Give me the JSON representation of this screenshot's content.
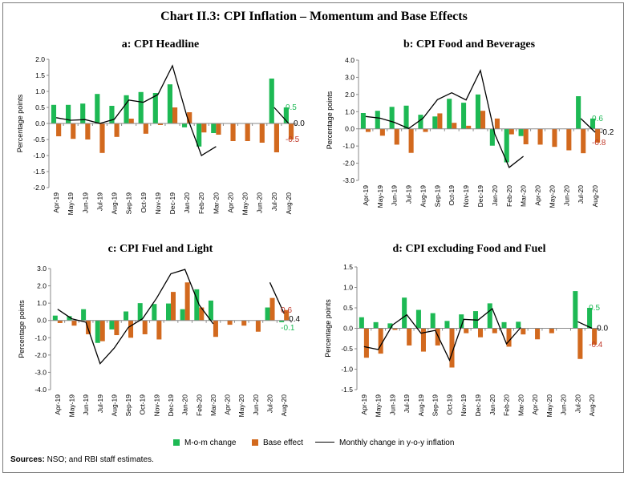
{
  "figure": {
    "title": "Chart II.3: CPI Inflation – Momentum and Base Effects",
    "legend": {
      "mom": "M-o-m change",
      "base": "Base effect",
      "line": "Monthly change in y-o-y inflation"
    },
    "sources_label": "Sources:",
    "sources_text": "NSO; and RBI staff estimates."
  },
  "colors": {
    "mom": "#1db954",
    "base": "#d2691e",
    "line": "#000000",
    "axis": "#8a8a8a",
    "red_label": "#c0392b",
    "green_label": "#1db954"
  },
  "chart_data": [
    {
      "type": "bar",
      "title": "a: CPI Headline",
      "ylabel": "Percentage points",
      "categories": [
        "Apr-19",
        "May-19",
        "Jun-19",
        "Jul-19",
        "Aug-19",
        "Sep-19",
        "Oct-19",
        "Nov-19",
        "Dec-19",
        "Jan-20",
        "Feb-20",
        "Mar-20",
        "Apr-20",
        "May-20",
        "Jun-20",
        "Jul-20",
        "Aug-20"
      ],
      "ylim": [
        -2.0,
        2.0
      ],
      "yticks": [
        "2.0",
        "1.5",
        "1.0",
        "0.5",
        "0.0",
        "-0.5",
        "-1.0",
        "-1.5",
        "-2.0"
      ],
      "series": [
        {
          "name": "M-o-m change",
          "values": [
            0.58,
            0.58,
            0.62,
            0.92,
            0.55,
            0.88,
            0.98,
            0.95,
            1.22,
            -0.12,
            -0.72,
            -0.3,
            null,
            null,
            null,
            1.4,
            0.5
          ]
        },
        {
          "name": "Base effect",
          "values": [
            -0.4,
            -0.48,
            -0.5,
            -0.92,
            -0.42,
            0.15,
            -0.32,
            -0.05,
            0.5,
            0.35,
            -0.28,
            -0.35,
            -0.55,
            -0.55,
            -0.6,
            -0.9,
            -0.5
          ]
        },
        {
          "name": "Monthly change in y-o-y inflation",
          "values": [
            0.18,
            0.1,
            0.12,
            0.0,
            0.13,
            0.73,
            0.66,
            0.9,
            1.8,
            0.22,
            -1.0,
            -0.72,
            null,
            null,
            null,
            0.5,
            0.0
          ]
        }
      ],
      "labels": [
        {
          "text": "0.5",
          "series": "mom",
          "index": 16,
          "value": 0.5
        },
        {
          "text": "0.0",
          "series": "line",
          "index": 16,
          "value": 0.0
        },
        {
          "text": "-0.5",
          "series": "base",
          "index": 16,
          "value": -0.5
        }
      ]
    },
    {
      "type": "bar",
      "title": "b: CPI Food and Beverages",
      "ylabel": "Percentage points",
      "categories": [
        "Apr-19",
        "May-19",
        "Jun-19",
        "Jul-19",
        "Aug-19",
        "Sep-19",
        "Oct-19",
        "Nov-19",
        "Dec-19",
        "Jan-20",
        "Feb-20",
        "Mar-20",
        "Apr-20",
        "May-20",
        "Jun-20",
        "Jul-20",
        "Aug-20"
      ],
      "ylim": [
        -3.0,
        4.0
      ],
      "yticks": [
        "4.0",
        "3.0",
        "2.0",
        "1.0",
        "0.0",
        "-1.0",
        "-2.0",
        "-3.0"
      ],
      "series": [
        {
          "name": "M-o-m change",
          "values": [
            0.92,
            1.05,
            1.28,
            1.35,
            0.82,
            0.72,
            1.75,
            1.52,
            2.0,
            -0.98,
            -1.95,
            -0.42,
            null,
            null,
            null,
            1.9,
            0.6
          ]
        },
        {
          "name": "Base effect",
          "values": [
            -0.18,
            -0.4,
            -0.92,
            -1.4,
            -0.18,
            0.9,
            0.35,
            0.18,
            1.05,
            0.6,
            -0.32,
            -0.9,
            -0.92,
            -1.05,
            -1.25,
            -1.42,
            -0.8
          ]
        },
        {
          "name": "Monthly change in y-o-y inflation",
          "values": [
            0.72,
            0.62,
            0.38,
            0.02,
            0.62,
            1.7,
            2.1,
            1.68,
            3.4,
            -0.3,
            -2.25,
            -1.6,
            null,
            null,
            null,
            0.6,
            -0.2
          ]
        }
      ],
      "labels": [
        {
          "text": "0.6",
          "series": "mom",
          "index": 16,
          "value": 0.6
        },
        {
          "text": "-0.2",
          "series": "line",
          "index": 16,
          "value": -0.2
        },
        {
          "text": "-0.8",
          "series": "base",
          "index": 16,
          "value": -0.8
        }
      ]
    },
    {
      "type": "bar",
      "title": "c: CPI Fuel and Light",
      "ylabel": "Percentage points",
      "categories": [
        "Apr-19",
        "May-19",
        "Jun-19",
        "Jul-19",
        "Aug-19",
        "Sep-19",
        "Oct-19",
        "Nov-19",
        "Dec-19",
        "Jan-20",
        "Feb-20",
        "Mar-20",
        "Apr-20",
        "May-20",
        "Jun-20",
        "Jul-20",
        "Aug-20"
      ],
      "ylim": [
        -4.0,
        3.0
      ],
      "yticks": [
        "3.0",
        "2.0",
        "1.0",
        "0.0",
        "-1.0",
        "-2.0",
        "-3.0",
        "-4.0"
      ],
      "series": [
        {
          "name": "M-o-m change",
          "values": [
            0.28,
            0.25,
            0.65,
            -1.3,
            -0.52,
            0.52,
            1.0,
            0.95,
            0.98,
            0.65,
            1.8,
            1.15,
            null,
            null,
            null,
            0.75,
            -0.1
          ]
        },
        {
          "name": "Base effect",
          "values": [
            -0.15,
            -0.3,
            -0.8,
            -1.2,
            -0.85,
            -1.0,
            -0.8,
            -1.1,
            1.65,
            2.2,
            0.75,
            -0.95,
            -0.25,
            -0.3,
            -0.65,
            1.3,
            0.6
          ]
        },
        {
          "name": "Monthly change in y-o-y inflation",
          "values": [
            0.65,
            0.1,
            -0.1,
            -2.5,
            -1.6,
            -0.4,
            0.1,
            1.3,
            2.7,
            2.95,
            0.9,
            -0.2,
            null,
            null,
            null,
            2.2,
            0.4
          ]
        }
      ],
      "labels": [
        {
          "text": "0.6",
          "series": "base",
          "index": 16,
          "value": 0.6
        },
        {
          "text": "0.4",
          "series": "line",
          "index": 16,
          "value": 0.4
        },
        {
          "text": "-0.1",
          "series": "mom",
          "index": 16,
          "value": -0.1
        }
      ]
    },
    {
      "type": "bar",
      "title": "d: CPI excluding Food and Fuel",
      "ylabel": "Percentage points",
      "categories": [
        "Apr-19",
        "May-19",
        "Jun-19",
        "Jul-19",
        "Aug-19",
        "Sep-19",
        "Oct-19",
        "Nov-19",
        "Dec-19",
        "Jan-20",
        "Feb-20",
        "Mar-20",
        "Apr-20",
        "May-20",
        "Jun-20",
        "Jul-20",
        "Aug-20"
      ],
      "ylim": [
        -1.5,
        1.5
      ],
      "yticks": [
        "1.5",
        "1.0",
        "0.5",
        "0.0",
        "-0.5",
        "-1.0",
        "-1.5"
      ],
      "series": [
        {
          "name": "M-o-m change",
          "values": [
            0.27,
            0.15,
            0.12,
            0.75,
            0.45,
            0.37,
            0.18,
            0.34,
            0.42,
            0.61,
            0.15,
            0.16,
            null,
            null,
            null,
            0.91,
            0.5
          ]
        },
        {
          "name": "Base effect",
          "values": [
            -0.72,
            -0.62,
            -0.04,
            -0.42,
            -0.57,
            -0.42,
            -0.96,
            -0.12,
            -0.22,
            -0.12,
            -0.45,
            -0.15,
            -0.27,
            -0.12,
            null,
            -0.75,
            -0.4
          ]
        },
        {
          "name": "Monthly change in y-o-y inflation",
          "values": [
            -0.45,
            -0.52,
            0.08,
            0.33,
            -0.12,
            -0.05,
            -0.78,
            0.22,
            0.2,
            0.48,
            -0.38,
            0.02,
            null,
            null,
            null,
            0.16,
            0.0
          ]
        }
      ],
      "labels": [
        {
          "text": "0.5",
          "series": "mom",
          "index": 16,
          "value": 0.5
        },
        {
          "text": "0.0",
          "series": "line",
          "index": 16,
          "value": 0.0
        },
        {
          "text": "-0.4",
          "series": "base",
          "index": 16,
          "value": -0.4
        }
      ]
    }
  ]
}
